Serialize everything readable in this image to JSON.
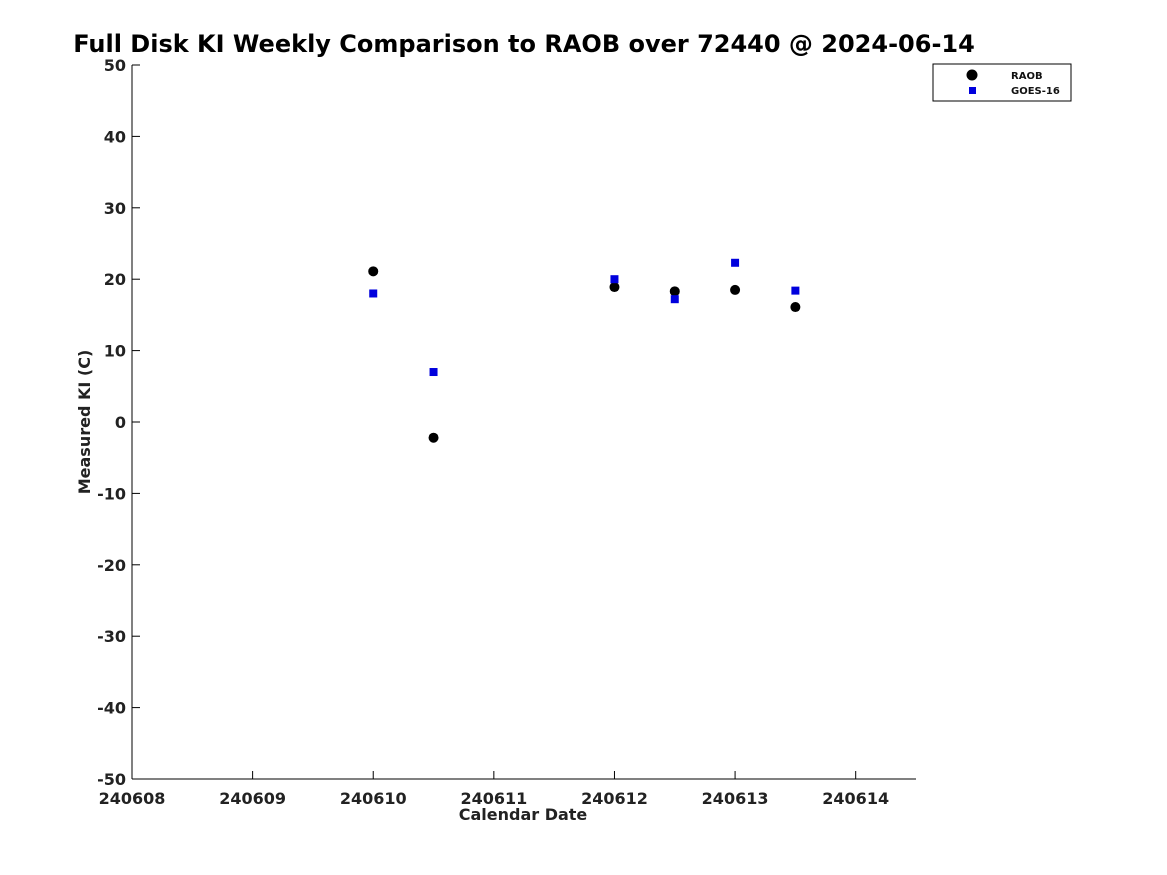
{
  "chart_data": {
    "type": "scatter",
    "title": "Full Disk KI Weekly Comparison to RAOB over 72440 @ 2024-06-14",
    "xlabel": "Calendar Date",
    "ylabel": "Measured KI (C)",
    "xlim": [
      240608,
      240614.5
    ],
    "ylim": [
      -50,
      50
    ],
    "xticks": [
      240608,
      240609,
      240610,
      240611,
      240612,
      240613,
      240614
    ],
    "xtick_labels": [
      "240608",
      "240609",
      "240610",
      "240611",
      "240612",
      "240613",
      "240614"
    ],
    "yticks": [
      -50,
      -40,
      -30,
      -20,
      -10,
      0,
      10,
      20,
      30,
      40,
      50
    ],
    "ytick_labels": [
      "-50",
      "-40",
      "-30",
      "-20",
      "-10",
      "0",
      "10",
      "20",
      "30",
      "40",
      "50"
    ],
    "grid": false,
    "legend_position": "top-right",
    "series": [
      {
        "name": "RAOB",
        "marker": "circle",
        "color": "#000000",
        "x": [
          240610,
          240610.5,
          240612,
          240612.5,
          240613,
          240613.5
        ],
        "y": [
          21.1,
          -2.2,
          18.9,
          18.3,
          18.5,
          16.1
        ]
      },
      {
        "name": "GOES-16",
        "marker": "square",
        "color": "#0000dd",
        "x": [
          240610,
          240610.5,
          240612,
          240612.5,
          240613,
          240613.5
        ],
        "y": [
          18.0,
          7.0,
          20.0,
          17.2,
          22.3,
          18.4
        ]
      }
    ]
  }
}
